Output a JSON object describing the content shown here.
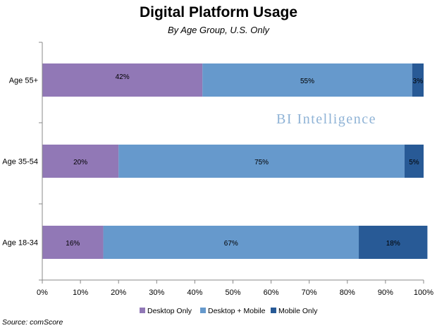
{
  "chart_data": {
    "type": "bar",
    "orientation": "horizontal",
    "stacked": true,
    "title": "Digital Platform Usage",
    "subtitle": "By Age Group, U.S. Only",
    "categories": [
      "Age 55+",
      "Age 35-54",
      "Age 18-34"
    ],
    "series": [
      {
        "name": "Desktop Only",
        "values": [
          42,
          20,
          16
        ],
        "labels": [
          "42%",
          "20%",
          "16%"
        ],
        "color": "#9178b6"
      },
      {
        "name": "Desktop + Mobile",
        "values": [
          55,
          75,
          67
        ],
        "labels": [
          "55%",
          "75%",
          "67%"
        ],
        "color": "#6699cc"
      },
      {
        "name": "Mobile Only",
        "values": [
          3,
          5,
          18
        ],
        "labels": [
          "3%",
          "5%",
          "18%"
        ],
        "color": "#285a96"
      }
    ],
    "xlim": [
      0,
      100
    ],
    "xticks": [
      "0%",
      "10%",
      "20%",
      "30%",
      "40%",
      "50%",
      "60%",
      "70%",
      "80%",
      "90%",
      "100%"
    ],
    "xlabel": "",
    "ylabel": "",
    "grid": false,
    "legend": "bottom",
    "watermark": "BI Intelligence",
    "source": "Source: comScore"
  }
}
